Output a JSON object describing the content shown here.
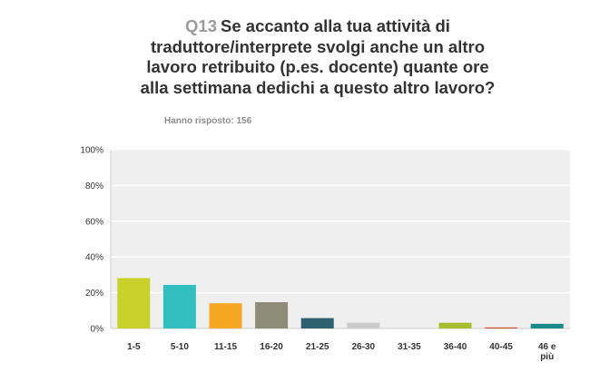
{
  "header": {
    "question_number": "Q13",
    "title_lines": [
      "Se accanto alla tua attività di",
      "traduttore/interprete svolgi anche un altro",
      "lavoro retribuito (p.es. docente) quante ore",
      "alla settimana dedichi a questo altro lavoro?"
    ],
    "answered": "Hanno risposto: 156"
  },
  "chart_data": {
    "type": "bar",
    "title": "Se accanto alla tua attività di traduttore/interprete svolgi anche un altro lavoro retribuito (p.es. docente) quante ore alla settimana dedichi a questo altro lavoro?",
    "categories": [
      "1-5",
      "5-10",
      "11-15",
      "16-20",
      "21-25",
      "26-30",
      "31-35",
      "36-40",
      "40-45",
      "46 e più"
    ],
    "category_lines": [
      [
        "1-5"
      ],
      [
        "5-10"
      ],
      [
        "11-15"
      ],
      [
        "16-20"
      ],
      [
        "21-25"
      ],
      [
        "26-30"
      ],
      [
        "31-35"
      ],
      [
        "36-40"
      ],
      [
        "40-45"
      ],
      [
        "46 e",
        "più"
      ]
    ],
    "values": [
      28.2,
      24.4,
      14.1,
      14.7,
      5.8,
      3.2,
      0,
      3.2,
      0.6,
      2.6
    ],
    "colors": [
      "#c8d22a",
      "#33bfbf",
      "#f5a623",
      "#8c8c78",
      "#2f6070",
      "#cccccc",
      "#e0e0e0",
      "#a8bc30",
      "#d4502a",
      "#1a8a8a"
    ],
    "ylim": [
      0,
      100
    ],
    "yticks": [
      0,
      20,
      40,
      60,
      80,
      100
    ],
    "ytick_labels": [
      "0%",
      "20%",
      "40%",
      "60%",
      "80%",
      "100%"
    ],
    "grid": true,
    "xlabel": "",
    "ylabel": ""
  }
}
